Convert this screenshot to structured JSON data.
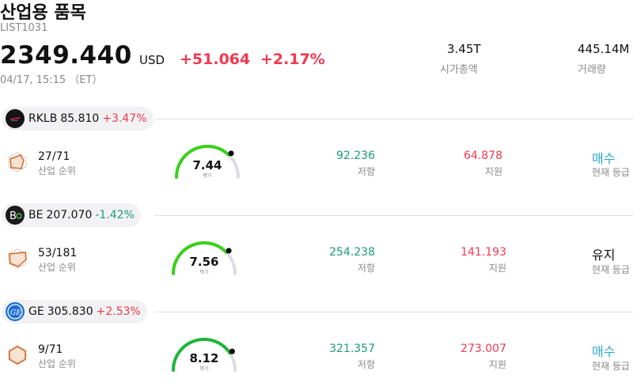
{
  "header": {
    "title": "산업용 품목",
    "code": "LIST1031",
    "price": "2349.440",
    "currency": "USD",
    "change": "+51.064",
    "change_pct": "+2.17%",
    "timestamp": "04/17, 15:15 （ET）",
    "market_cap_value": "3.45T",
    "market_cap_label": "시가총액",
    "volume_value": "445.14M",
    "volume_label": "거래량"
  },
  "labels": {
    "rank": "산업 순위",
    "resistance": "저항",
    "support": "지원",
    "rating": "현재 등급",
    "gauge": "평가"
  },
  "colors": {
    "up": "#f0394f",
    "down": "#1a9e6e",
    "buy": "#29a9c9",
    "gauge_track": "#dcdce4"
  },
  "stocks": [
    {
      "ticker": "RKLB",
      "price": "85.810",
      "change": "+3.47%",
      "direction": "up",
      "rank": "27/71",
      "score": "7.44",
      "score_fraction": 0.744,
      "resistance": "92.236",
      "support": "64.878",
      "rating": "매수",
      "rating_type": "buy",
      "logo_icon": "rocket-lab-logo-icon"
    },
    {
      "ticker": "BE",
      "price": "207.070",
      "change": "-1.42%",
      "direction": "down",
      "rank": "53/181",
      "score": "7.56",
      "score_fraction": 0.756,
      "resistance": "254.238",
      "support": "141.193",
      "rating": "유지",
      "rating_type": "hold",
      "logo_icon": "bloom-energy-logo-icon"
    },
    {
      "ticker": "GE",
      "price": "305.830",
      "change": "+2.53%",
      "direction": "up",
      "rank": "9/71",
      "score": "8.12",
      "score_fraction": 0.812,
      "resistance": "321.357",
      "support": "273.007",
      "rating": "매수",
      "rating_type": "buy",
      "logo_icon": "ge-logo-icon"
    }
  ]
}
